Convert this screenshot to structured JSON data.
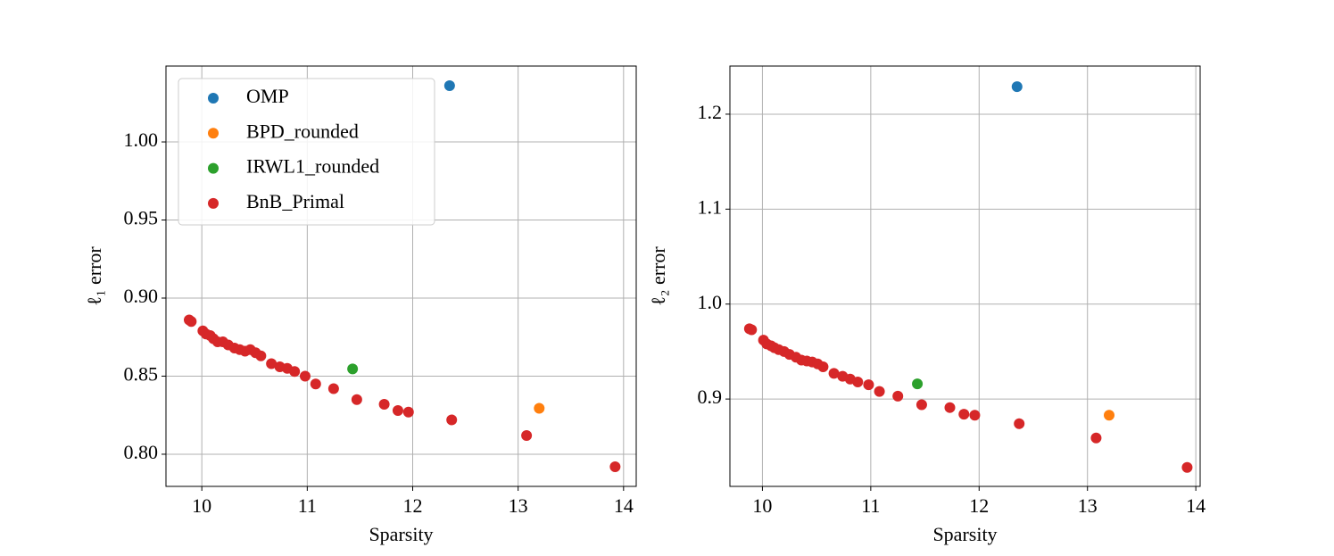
{
  "chart_data": [
    {
      "type": "scatter",
      "x_label": "Sparsity",
      "y_label": "ℓ₁ error",
      "xlim": [
        9.66,
        14.12
      ],
      "ylim": [
        0.7794,
        1.0486
      ],
      "xticks": [
        10,
        11,
        12,
        13,
        14
      ],
      "yticks": [
        {
          "value": 0.8,
          "label": "0.80"
        },
        {
          "value": 0.85,
          "label": "0.85"
        },
        {
          "value": 0.9,
          "label": "0.90"
        },
        {
          "value": 0.95,
          "label": "0.95"
        },
        {
          "value": 1.0,
          "label": "1.00"
        }
      ],
      "grid": true,
      "legend": "upper left",
      "series": [
        {
          "name": "OMP",
          "color": "#1f77b4",
          "x": [
            12.35
          ],
          "values": [
            1.036
          ]
        },
        {
          "name": "BPD_rounded",
          "color": "#ff7f0e",
          "x": [
            13.2
          ],
          "values": [
            0.8294
          ]
        },
        {
          "name": "IRWL1_rounded",
          "color": "#2ca02c",
          "x": [
            11.43
          ],
          "values": [
            0.8546
          ]
        },
        {
          "name": "BnB_Primal",
          "color": "#d62728",
          "x": [
            9.88,
            9.9,
            10.01,
            10.04,
            10.08,
            10.11,
            10.15,
            10.2,
            10.25,
            10.31,
            10.36,
            10.41,
            10.46,
            10.51,
            10.56,
            10.66,
            10.74,
            10.81,
            10.88,
            10.98,
            11.08,
            11.25,
            11.47,
            11.73,
            11.86,
            11.96,
            12.37,
            13.08,
            13.92
          ],
          "values": [
            0.886,
            0.885,
            0.879,
            0.877,
            0.876,
            0.874,
            0.872,
            0.872,
            0.87,
            0.868,
            0.867,
            0.866,
            0.867,
            0.865,
            0.863,
            0.858,
            0.856,
            0.855,
            0.853,
            0.85,
            0.845,
            0.842,
            0.835,
            0.832,
            0.828,
            0.827,
            0.822,
            0.812,
            0.792
          ]
        }
      ]
    },
    {
      "type": "scatter",
      "x_label": "Sparsity",
      "y_label": "ℓ₂ error",
      "xlim": [
        9.7,
        14.04
      ],
      "ylim": [
        0.808,
        1.2507
      ],
      "xticks": [
        10,
        11,
        12,
        13,
        14
      ],
      "yticks": [
        0.9,
        {
          "value": 1.0,
          "label": "1.0"
        },
        1.1,
        1.2
      ],
      "grid": true,
      "series": [
        {
          "name": "OMP",
          "color": "#1f77b4",
          "x": [
            12.35
          ],
          "values": [
            1.229
          ]
        },
        {
          "name": "BPD_rounded",
          "color": "#ff7f0e",
          "x": [
            13.2
          ],
          "values": [
            0.883
          ]
        },
        {
          "name": "IRWL1_rounded",
          "color": "#2ca02c",
          "x": [
            11.43
          ],
          "values": [
            0.916
          ]
        },
        {
          "name": "BnB_Primal",
          "color": "#d62728",
          "x": [
            9.88,
            9.9,
            10.01,
            10.04,
            10.08,
            10.11,
            10.15,
            10.2,
            10.25,
            10.31,
            10.36,
            10.41,
            10.46,
            10.51,
            10.56,
            10.66,
            10.74,
            10.81,
            10.88,
            10.98,
            11.08,
            11.25,
            11.47,
            11.73,
            11.86,
            11.96,
            12.37,
            13.08,
            13.92
          ],
          "values": [
            0.974,
            0.973,
            0.962,
            0.958,
            0.956,
            0.954,
            0.952,
            0.95,
            0.947,
            0.944,
            0.941,
            0.94,
            0.939,
            0.937,
            0.934,
            0.927,
            0.924,
            0.921,
            0.918,
            0.915,
            0.908,
            0.903,
            0.894,
            0.891,
            0.884,
            0.883,
            0.874,
            0.859,
            0.828
          ]
        }
      ]
    }
  ]
}
